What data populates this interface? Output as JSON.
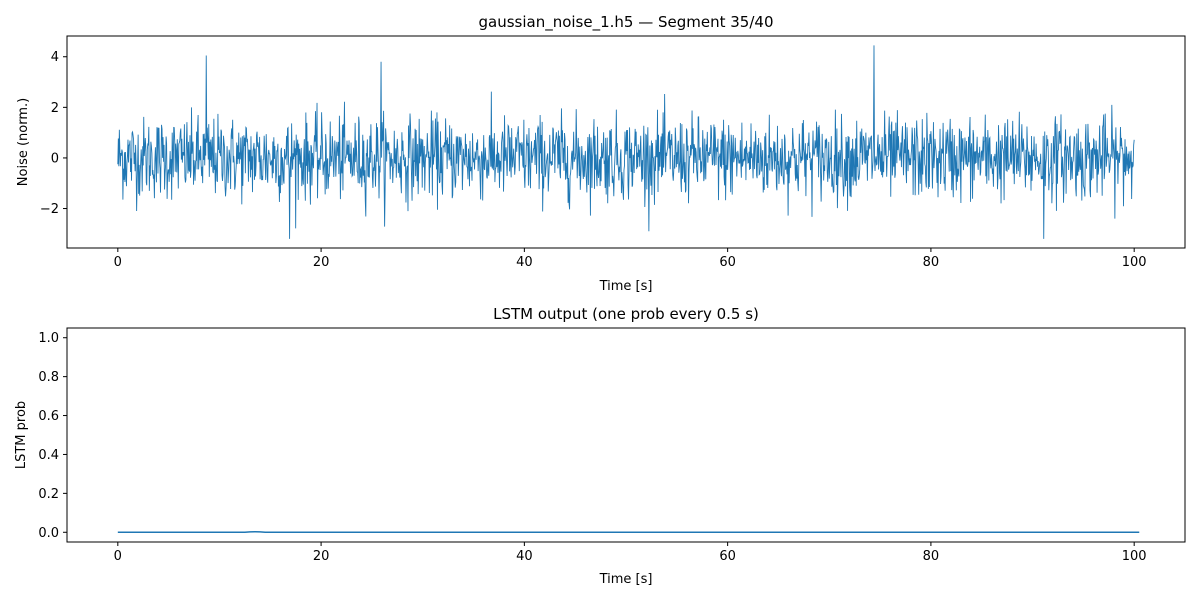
{
  "chart_data": [
    {
      "type": "line",
      "title": "gaussian_noise_1.h5 — Segment 35/40",
      "xlabel": "Time [s]",
      "ylabel": "Noise (norm.)",
      "xlim": [
        -5,
        105
      ],
      "ylim": [
        -3.56,
        4.82
      ],
      "xticks": [
        0,
        20,
        40,
        60,
        80,
        100
      ],
      "yticks": [
        -2,
        0,
        2,
        4
      ],
      "grid": false,
      "color": "#1f77b4",
      "signal": {
        "distribution": "gaussian",
        "x_range": [
          0,
          100
        ],
        "mean": 0,
        "std": 0.8,
        "min": -3.2,
        "max": 4.45,
        "notable_peaks": [
          {
            "x": 8.7,
            "y": 4.05
          },
          {
            "x": 25.9,
            "y": 3.8
          },
          {
            "x": 74.4,
            "y": 4.45
          },
          {
            "x": 16.9,
            "y": -3.2
          },
          {
            "x": 91.1,
            "y": -3.2
          }
        ]
      }
    },
    {
      "type": "line",
      "title": "LSTM output (one prob every 0.5 s)",
      "xlabel": "Time [s]",
      "ylabel": "LSTM prob",
      "xlim": [
        -5,
        105
      ],
      "ylim": [
        -0.05,
        1.05
      ],
      "xticks": [
        0,
        20,
        40,
        60,
        80,
        100
      ],
      "yticks": [
        0.0,
        0.2,
        0.4,
        0.6,
        0.8,
        1.0
      ],
      "grid": false,
      "color": "#1f77b4",
      "x_start": 0,
      "x_step": 0.5,
      "values": [
        0,
        0,
        0,
        0,
        0,
        0,
        0,
        0,
        0,
        0,
        0,
        0,
        0,
        0,
        0,
        0,
        0,
        0,
        0,
        0,
        0,
        0,
        0,
        0,
        0,
        0,
        0.002,
        0.003,
        0.002,
        0,
        0,
        0,
        0,
        0,
        0,
        0,
        0,
        0,
        0,
        0,
        0,
        0,
        0,
        0,
        0,
        0,
        0,
        0,
        0,
        0,
        0,
        0,
        0,
        0,
        0,
        0,
        0,
        0,
        0,
        0,
        0,
        0,
        0,
        0,
        0,
        0,
        0,
        0,
        0,
        0,
        0,
        0,
        0,
        0,
        0,
        0,
        0,
        0,
        0,
        0,
        0,
        0,
        0,
        0,
        0,
        0,
        0,
        0,
        0,
        0,
        0,
        0,
        0,
        0,
        0,
        0,
        0,
        0,
        0,
        0,
        0,
        0,
        0,
        0,
        0,
        0,
        0,
        0,
        0,
        0,
        0,
        0,
        0,
        0,
        0,
        0,
        0,
        0,
        0,
        0,
        0,
        0,
        0,
        0,
        0,
        0,
        0,
        0,
        0,
        0,
        0,
        0,
        0,
        0,
        0,
        0,
        0,
        0,
        0,
        0,
        0,
        0,
        0,
        0,
        0,
        0,
        0,
        0,
        0,
        0,
        0,
        0,
        0,
        0,
        0,
        0,
        0,
        0,
        0,
        0,
        0,
        0,
        0,
        0,
        0,
        0,
        0,
        0,
        0,
        0,
        0,
        0,
        0,
        0,
        0,
        0,
        0,
        0,
        0,
        0,
        0,
        0,
        0,
        0,
        0,
        0,
        0,
        0,
        0,
        0,
        0,
        0,
        0,
        0,
        0,
        0,
        0,
        0,
        0,
        0,
        0,
        0
      ]
    }
  ]
}
